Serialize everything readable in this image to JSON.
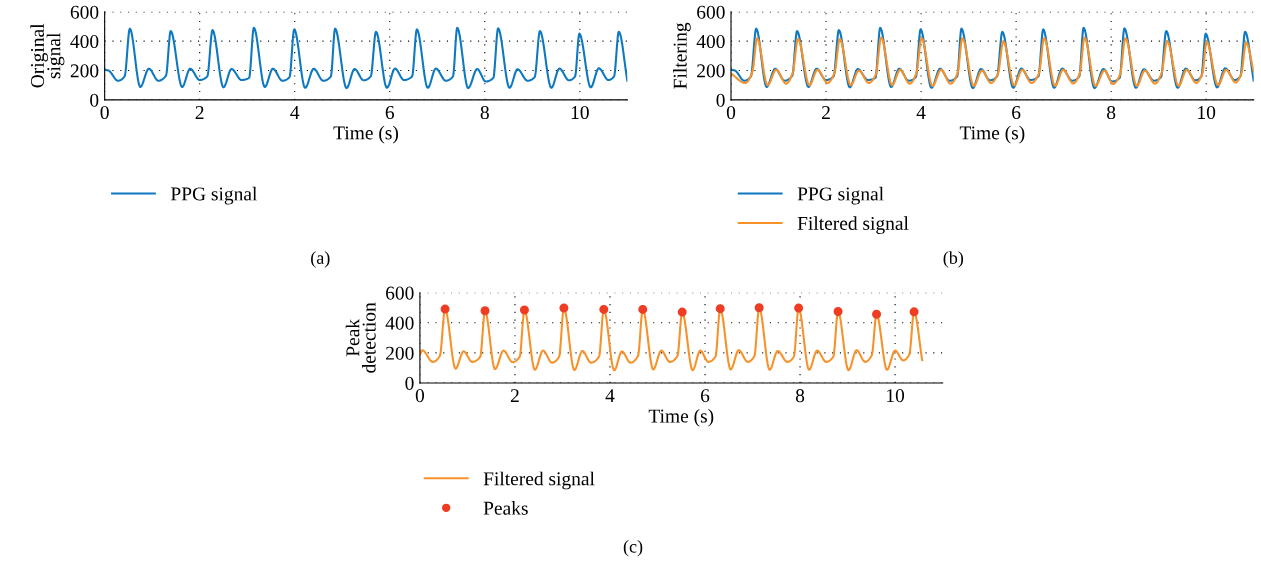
{
  "chart_data": [
    {
      "type": "line",
      "xlabel": "Time (s)",
      "ylabel": "Original\nsignal",
      "xlim": [
        0,
        11
      ],
      "ylim": [
        0,
        600
      ],
      "xticks": [
        0,
        2,
        4,
        6,
        8,
        10
      ],
      "yticks": [
        0,
        200,
        400,
        600
      ],
      "grid": true,
      "legend": "bottom",
      "annotations": [
        "(a)"
      ],
      "series": [
        {
          "name": "PPG signal",
          "color": "#0e78c0",
          "x": [
            0,
            0.08,
            0.28,
            0.42,
            0.53,
            0.75,
            0.93,
            1.13,
            1.29,
            1.39,
            1.63,
            1.8,
            2.0,
            2.16,
            2.27,
            2.5,
            2.67,
            2.88,
            3.04,
            3.14,
            3.37,
            3.54,
            3.74,
            3.89,
            3.99,
            4.22,
            4.4,
            4.6,
            4.76,
            4.85,
            5.09,
            5.26,
            5.45,
            5.6,
            5.71,
            5.94,
            6.11,
            6.3,
            6.47,
            6.57,
            6.8,
            6.97,
            7.18,
            7.33,
            7.42,
            7.65,
            7.84,
            8.02,
            8.18,
            8.28,
            8.52,
            8.69,
            8.9,
            9.05,
            9.16,
            9.4,
            9.57,
            9.77,
            9.9,
            9.99,
            10.23,
            10.4,
            10.6,
            10.72,
            10.82,
            11.0
          ],
          "values": [
            205,
            200,
            130,
            160,
            485,
            88,
            212,
            130,
            165,
            469,
            88,
            212,
            135,
            160,
            475,
            85,
            210,
            135,
            150,
            491,
            88,
            212,
            130,
            155,
            480,
            82,
            212,
            130,
            160,
            485,
            80,
            210,
            133,
            160,
            464,
            82,
            213,
            135,
            160,
            480,
            82,
            213,
            130,
            160,
            491,
            80,
            210,
            125,
            150,
            487,
            82,
            208,
            130,
            155,
            469,
            82,
            213,
            133,
            160,
            451,
            85,
            215,
            135,
            160,
            464,
            130
          ]
        }
      ]
    },
    {
      "type": "line",
      "xlabel": "Time (s)",
      "ylabel": "Filtering",
      "xlim": [
        0,
        11
      ],
      "ylim": [
        0,
        600
      ],
      "xticks": [
        0,
        2,
        4,
        6,
        8,
        10
      ],
      "yticks": [
        0,
        200,
        400,
        600
      ],
      "grid": true,
      "legend": "bottom",
      "annotations": [
        "(b)"
      ],
      "series": [
        {
          "name": "PPG signal",
          "color": "#0e78c0",
          "x": [
            0,
            0.08,
            0.28,
            0.42,
            0.53,
            0.75,
            0.93,
            1.13,
            1.29,
            1.39,
            1.63,
            1.8,
            2.0,
            2.16,
            2.27,
            2.5,
            2.67,
            2.88,
            3.04,
            3.14,
            3.37,
            3.54,
            3.74,
            3.89,
            3.99,
            4.22,
            4.4,
            4.6,
            4.76,
            4.85,
            5.09,
            5.26,
            5.45,
            5.6,
            5.71,
            5.94,
            6.11,
            6.3,
            6.47,
            6.57,
            6.8,
            6.97,
            7.18,
            7.33,
            7.42,
            7.65,
            7.84,
            8.02,
            8.18,
            8.28,
            8.52,
            8.69,
            8.9,
            9.05,
            9.16,
            9.4,
            9.57,
            9.77,
            9.9,
            9.99,
            10.23,
            10.4,
            10.6,
            10.72,
            10.82,
            11.0
          ],
          "values": [
            205,
            200,
            130,
            160,
            485,
            88,
            212,
            130,
            165,
            469,
            88,
            212,
            135,
            160,
            475,
            85,
            210,
            135,
            150,
            491,
            88,
            212,
            130,
            155,
            480,
            82,
            212,
            130,
            160,
            485,
            80,
            210,
            133,
            160,
            464,
            82,
            213,
            135,
            160,
            480,
            82,
            213,
            130,
            160,
            491,
            80,
            210,
            125,
            150,
            487,
            82,
            208,
            130,
            155,
            469,
            82,
            213,
            133,
            160,
            451,
            85,
            215,
            135,
            160,
            464,
            130
          ]
        },
        {
          "name": "Filtered signal",
          "color": "#f7922a",
          "x": [
            0,
            0.3,
            0.45,
            0.55,
            0.77,
            0.95,
            1.16,
            1.3,
            1.41,
            1.65,
            1.82,
            2.03,
            2.18,
            2.29,
            2.52,
            2.69,
            2.9,
            3.05,
            3.16,
            3.39,
            3.56,
            3.76,
            3.9,
            4.01,
            4.24,
            4.42,
            4.62,
            4.77,
            4.87,
            5.11,
            5.28,
            5.47,
            5.62,
            5.73,
            5.96,
            6.13,
            6.32,
            6.48,
            6.59,
            6.82,
            6.99,
            7.2,
            7.34,
            7.44,
            7.67,
            7.86,
            8.04,
            8.19,
            8.3,
            8.54,
            8.71,
            8.92,
            9.06,
            9.18,
            9.42,
            9.59,
            9.79,
            9.92,
            10.01,
            10.25,
            10.42,
            10.62,
            10.74,
            10.84,
            11.0
          ],
          "values": [
            180,
            115,
            190,
            420,
            100,
            205,
            110,
            185,
            415,
            100,
            205,
            115,
            185,
            415,
            100,
            200,
            115,
            175,
            425,
            100,
            205,
            110,
            180,
            420,
            95,
            205,
            110,
            185,
            420,
            95,
            200,
            115,
            180,
            400,
            98,
            205,
            115,
            180,
            420,
            95,
            205,
            112,
            180,
            425,
            95,
            200,
            108,
            175,
            420,
            95,
            200,
            110,
            180,
            400,
            95,
            205,
            115,
            180,
            395,
            100,
            205,
            118,
            180,
            390,
            195
          ]
        }
      ]
    },
    {
      "type": "line",
      "xlabel": "Time (s)",
      "ylabel": "Peak\ndetection",
      "xlim": [
        0,
        11
      ],
      "ylim": [
        0,
        600
      ],
      "xticks": [
        0,
        2,
        4,
        6,
        8,
        10
      ],
      "yticks": [
        0,
        200,
        400,
        600
      ],
      "grid": true,
      "legend": "bottom",
      "annotations": [
        "(c)"
      ],
      "series": [
        {
          "name": "Filtered signal",
          "color": "#f7922a",
          "x": [
            0,
            0.05,
            0.27,
            0.42,
            0.53,
            0.75,
            0.92,
            1.1,
            1.27,
            1.37,
            1.58,
            1.76,
            1.95,
            2.1,
            2.2,
            2.42,
            2.59,
            2.78,
            2.93,
            3.03,
            3.25,
            3.42,
            3.6,
            3.77,
            3.87,
            4.09,
            4.25,
            4.43,
            4.59,
            4.69,
            4.91,
            5.08,
            5.26,
            5.42,
            5.52,
            5.74,
            5.9,
            6.07,
            6.22,
            6.32,
            6.54,
            6.71,
            6.9,
            7.04,
            7.14,
            7.36,
            7.53,
            7.73,
            7.87,
            7.97,
            8.19,
            8.36,
            8.55,
            8.7,
            8.8,
            9.02,
            9.19,
            9.37,
            9.51,
            9.61,
            9.83,
            10.0,
            10.17,
            10.3,
            10.4,
            10.57
          ],
          "values": [
            186,
            217,
            140,
            180,
            491,
            95,
            210,
            140,
            175,
            480,
            92,
            215,
            138,
            175,
            485,
            88,
            215,
            135,
            175,
            498,
            86,
            212,
            135,
            175,
            489,
            84,
            210,
            135,
            180,
            489,
            90,
            215,
            140,
            180,
            471,
            85,
            215,
            140,
            175,
            494,
            90,
            218,
            140,
            180,
            500,
            88,
            213,
            140,
            175,
            498,
            88,
            215,
            140,
            175,
            475,
            85,
            218,
            140,
            185,
            457,
            88,
            215,
            150,
            190,
            473,
            152
          ]
        },
        {
          "name": "Peaks",
          "type": "scatter",
          "marker": "circle",
          "color": "#ee3d23",
          "x": [
            0.53,
            1.37,
            2.2,
            3.03,
            3.87,
            4.69,
            5.52,
            6.32,
            7.14,
            7.97,
            8.8,
            9.61,
            10.4
          ],
          "values": [
            491,
            480,
            485,
            498,
            489,
            489,
            471,
            494,
            500,
            498,
            475,
            457,
            473
          ]
        }
      ]
    }
  ]
}
